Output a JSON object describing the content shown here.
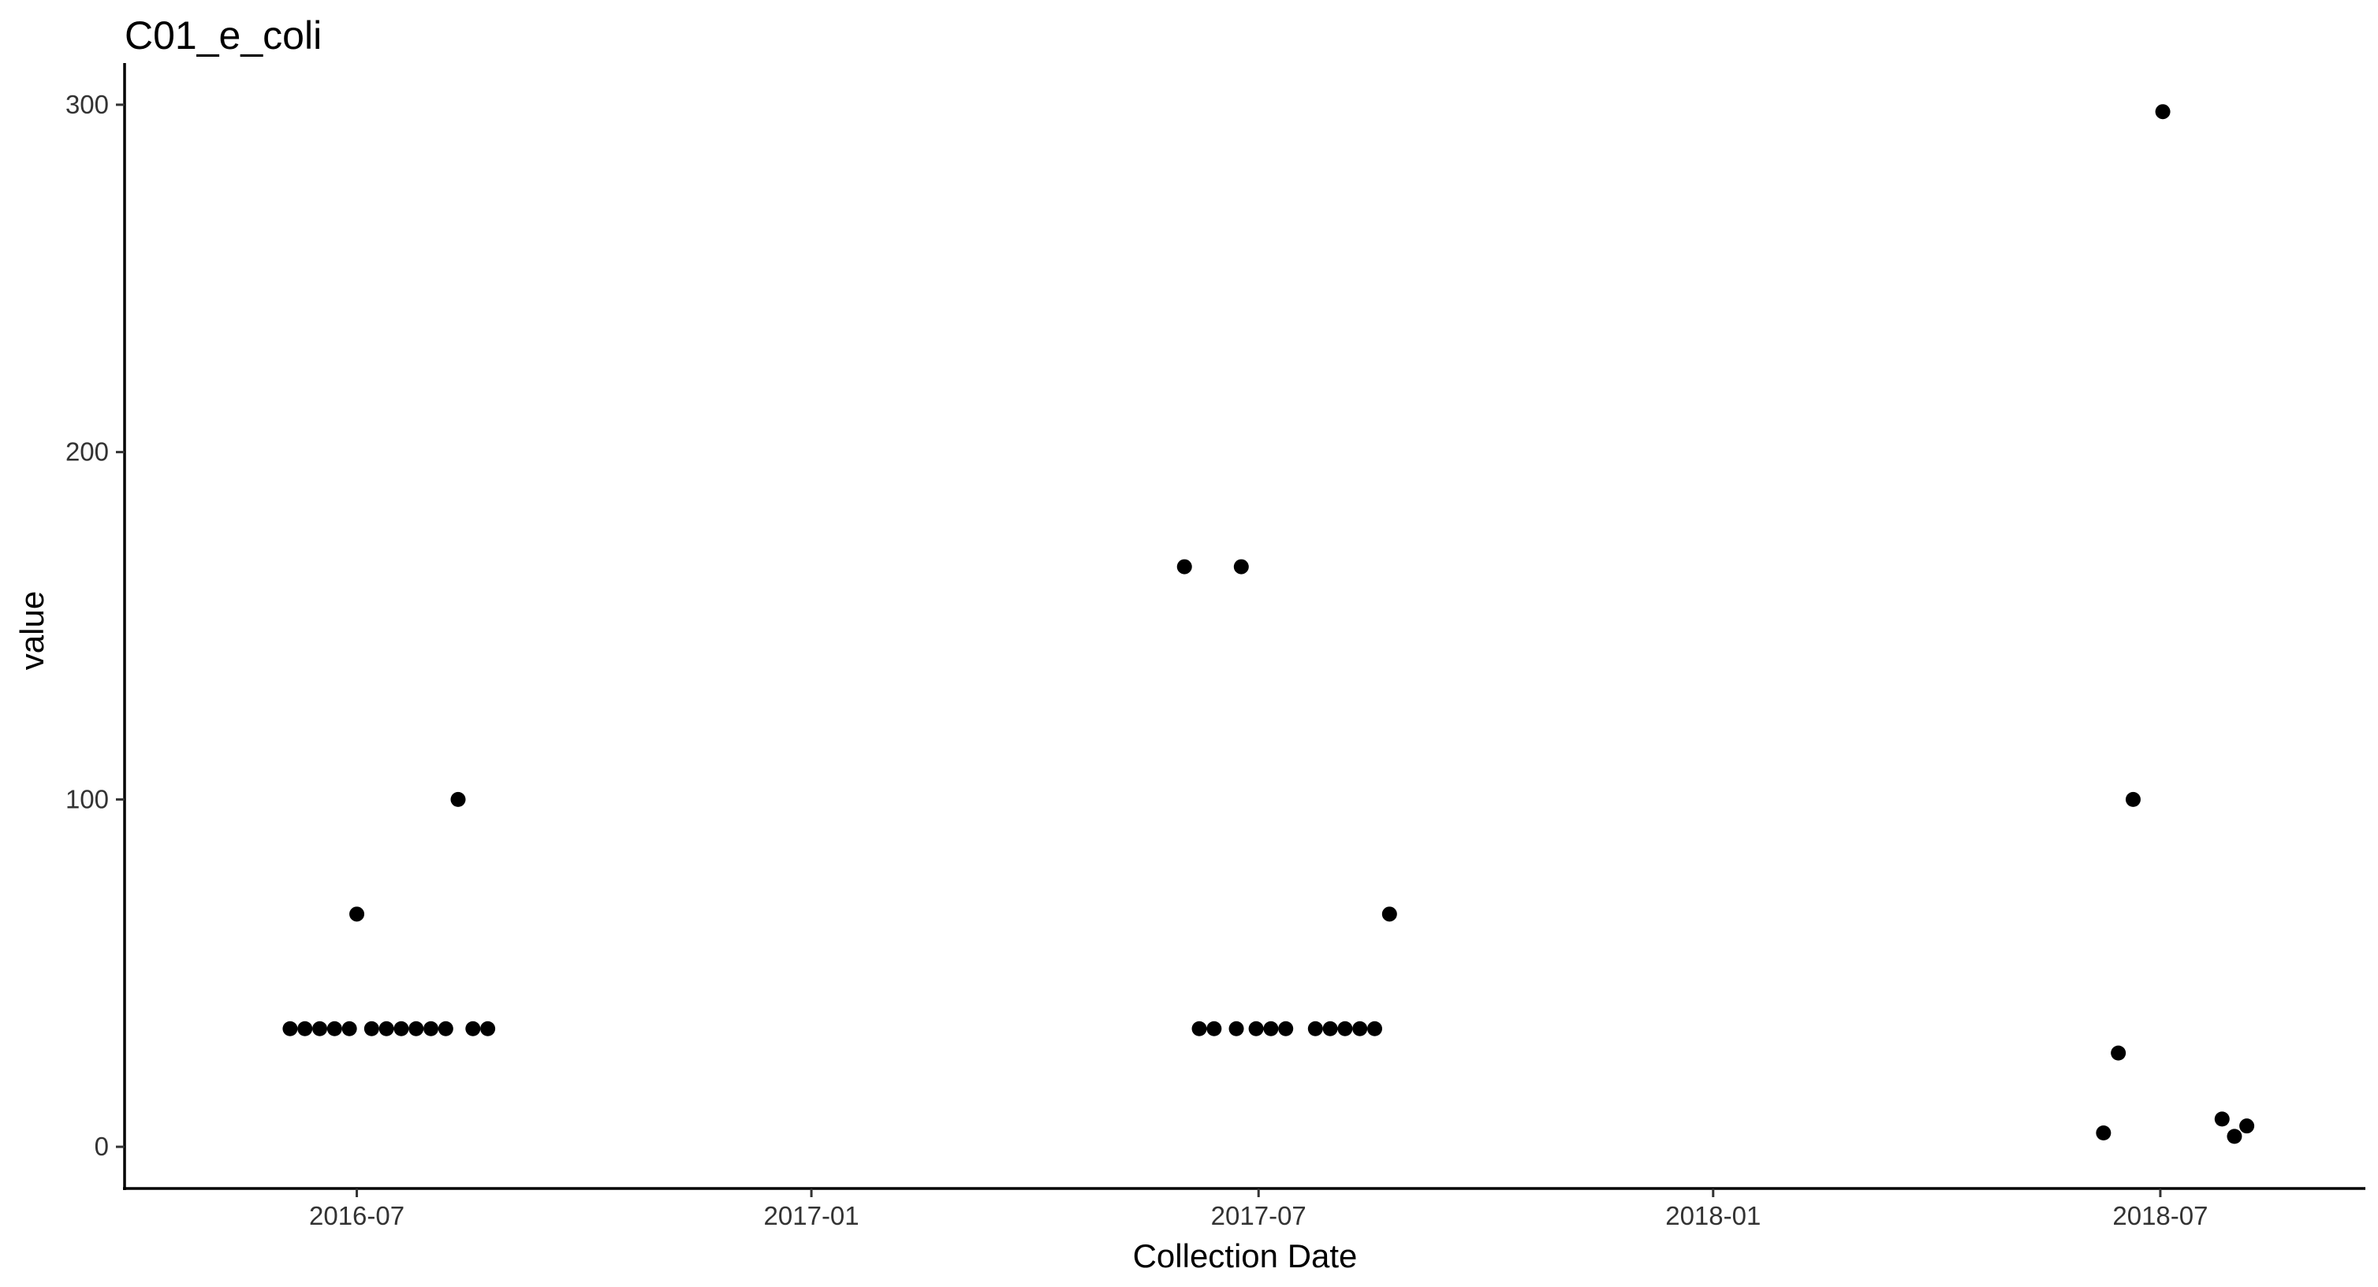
{
  "chart_data": {
    "type": "scatter",
    "title": "C01_e_coli",
    "xlabel": "Collection Date",
    "ylabel": "value",
    "x_type": "date",
    "xlim": [
      "2016-03-29",
      "2018-09-22"
    ],
    "ylim": [
      -12,
      312
    ],
    "x_ticks": [
      "2016-07-01",
      "2017-01-01",
      "2017-07-01",
      "2018-01-01",
      "2018-07-01"
    ],
    "x_tick_labels": [
      "2016-07",
      "2017-01",
      "2017-07",
      "2018-01",
      "2018-07"
    ],
    "y_ticks": [
      0,
      100,
      200,
      300
    ],
    "y_tick_labels": [
      "0",
      "100",
      "200",
      "300"
    ],
    "grid": false,
    "legend": "none",
    "colors": {
      "point": "#000000",
      "axis": "#000000",
      "tick": "#333333"
    },
    "series": [
      {
        "points": [
          {
            "x": "2016-06-04",
            "y": 34
          },
          {
            "x": "2016-06-10",
            "y": 34
          },
          {
            "x": "2016-06-16",
            "y": 34
          },
          {
            "x": "2016-06-22",
            "y": 34
          },
          {
            "x": "2016-06-28",
            "y": 34
          },
          {
            "x": "2016-07-01",
            "y": 67
          },
          {
            "x": "2016-07-07",
            "y": 34
          },
          {
            "x": "2016-07-13",
            "y": 34
          },
          {
            "x": "2016-07-19",
            "y": 34
          },
          {
            "x": "2016-07-25",
            "y": 34
          },
          {
            "x": "2016-07-31",
            "y": 34
          },
          {
            "x": "2016-08-06",
            "y": 34
          },
          {
            "x": "2016-08-11",
            "y": 100
          },
          {
            "x": "2016-08-17",
            "y": 34
          },
          {
            "x": "2016-08-23",
            "y": 34
          },
          {
            "x": "2017-06-01",
            "y": 167
          },
          {
            "x": "2017-06-07",
            "y": 34
          },
          {
            "x": "2017-06-13",
            "y": 34
          },
          {
            "x": "2017-06-22",
            "y": 34
          },
          {
            "x": "2017-06-24",
            "y": 167
          },
          {
            "x": "2017-06-30",
            "y": 34
          },
          {
            "x": "2017-07-06",
            "y": 34
          },
          {
            "x": "2017-07-12",
            "y": 34
          },
          {
            "x": "2017-07-24",
            "y": 34
          },
          {
            "x": "2017-07-30",
            "y": 34
          },
          {
            "x": "2017-08-05",
            "y": 34
          },
          {
            "x": "2017-08-11",
            "y": 34
          },
          {
            "x": "2017-08-17",
            "y": 34
          },
          {
            "x": "2017-08-23",
            "y": 67
          },
          {
            "x": "2018-06-08",
            "y": 4
          },
          {
            "x": "2018-06-14",
            "y": 27
          },
          {
            "x": "2018-06-20",
            "y": 100
          },
          {
            "x": "2018-07-02",
            "y": 298
          },
          {
            "x": "2018-07-26",
            "y": 8
          },
          {
            "x": "2018-07-31",
            "y": 3
          },
          {
            "x": "2018-08-05",
            "y": 6
          }
        ]
      }
    ]
  }
}
